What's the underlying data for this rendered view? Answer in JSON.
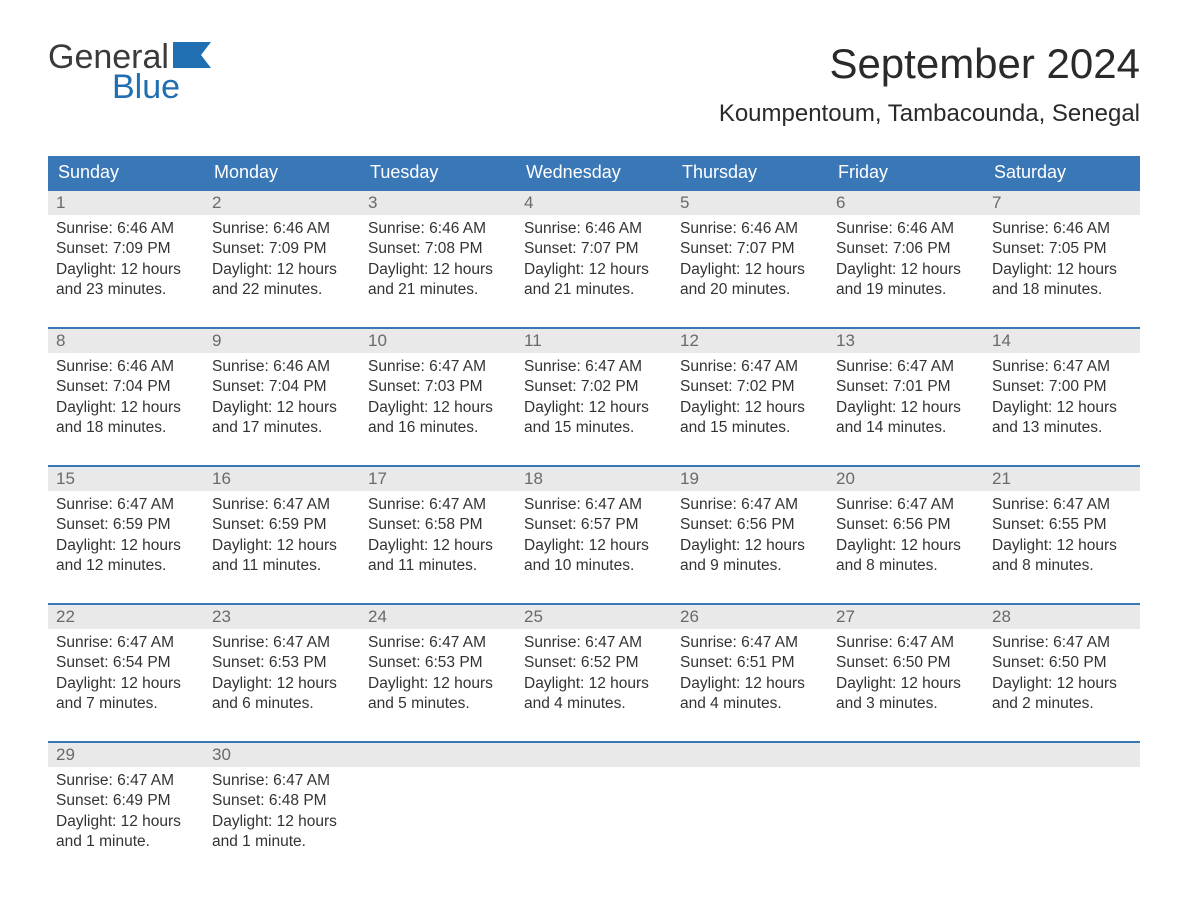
{
  "logo": {
    "word1": "General",
    "word2": "Blue"
  },
  "title": "September 2024",
  "location": "Koumpentoum, Tambacounda, Senegal",
  "colors": {
    "header_bg": "#3a77b7",
    "header_text": "#ffffff",
    "row_border": "#3a77b7",
    "daynum_bg": "#e9e9e9",
    "daynum_text": "#6a6a6a",
    "body_text": "#333333",
    "logo_gray": "#3a3a3a",
    "logo_blue": "#1f6fb2",
    "page_bg": "#ffffff"
  },
  "dow": [
    "Sunday",
    "Monday",
    "Tuesday",
    "Wednesday",
    "Thursday",
    "Friday",
    "Saturday"
  ],
  "weeks": [
    [
      {
        "n": "1",
        "sr": "Sunrise: 6:46 AM",
        "ss": "Sunset: 7:09 PM",
        "d1": "Daylight: 12 hours",
        "d2": "and 23 minutes."
      },
      {
        "n": "2",
        "sr": "Sunrise: 6:46 AM",
        "ss": "Sunset: 7:09 PM",
        "d1": "Daylight: 12 hours",
        "d2": "and 22 minutes."
      },
      {
        "n": "3",
        "sr": "Sunrise: 6:46 AM",
        "ss": "Sunset: 7:08 PM",
        "d1": "Daylight: 12 hours",
        "d2": "and 21 minutes."
      },
      {
        "n": "4",
        "sr": "Sunrise: 6:46 AM",
        "ss": "Sunset: 7:07 PM",
        "d1": "Daylight: 12 hours",
        "d2": "and 21 minutes."
      },
      {
        "n": "5",
        "sr": "Sunrise: 6:46 AM",
        "ss": "Sunset: 7:07 PM",
        "d1": "Daylight: 12 hours",
        "d2": "and 20 minutes."
      },
      {
        "n": "6",
        "sr": "Sunrise: 6:46 AM",
        "ss": "Sunset: 7:06 PM",
        "d1": "Daylight: 12 hours",
        "d2": "and 19 minutes."
      },
      {
        "n": "7",
        "sr": "Sunrise: 6:46 AM",
        "ss": "Sunset: 7:05 PM",
        "d1": "Daylight: 12 hours",
        "d2": "and 18 minutes."
      }
    ],
    [
      {
        "n": "8",
        "sr": "Sunrise: 6:46 AM",
        "ss": "Sunset: 7:04 PM",
        "d1": "Daylight: 12 hours",
        "d2": "and 18 minutes."
      },
      {
        "n": "9",
        "sr": "Sunrise: 6:46 AM",
        "ss": "Sunset: 7:04 PM",
        "d1": "Daylight: 12 hours",
        "d2": "and 17 minutes."
      },
      {
        "n": "10",
        "sr": "Sunrise: 6:47 AM",
        "ss": "Sunset: 7:03 PM",
        "d1": "Daylight: 12 hours",
        "d2": "and 16 minutes."
      },
      {
        "n": "11",
        "sr": "Sunrise: 6:47 AM",
        "ss": "Sunset: 7:02 PM",
        "d1": "Daylight: 12 hours",
        "d2": "and 15 minutes."
      },
      {
        "n": "12",
        "sr": "Sunrise: 6:47 AM",
        "ss": "Sunset: 7:02 PM",
        "d1": "Daylight: 12 hours",
        "d2": "and 15 minutes."
      },
      {
        "n": "13",
        "sr": "Sunrise: 6:47 AM",
        "ss": "Sunset: 7:01 PM",
        "d1": "Daylight: 12 hours",
        "d2": "and 14 minutes."
      },
      {
        "n": "14",
        "sr": "Sunrise: 6:47 AM",
        "ss": "Sunset: 7:00 PM",
        "d1": "Daylight: 12 hours",
        "d2": "and 13 minutes."
      }
    ],
    [
      {
        "n": "15",
        "sr": "Sunrise: 6:47 AM",
        "ss": "Sunset: 6:59 PM",
        "d1": "Daylight: 12 hours",
        "d2": "and 12 minutes."
      },
      {
        "n": "16",
        "sr": "Sunrise: 6:47 AM",
        "ss": "Sunset: 6:59 PM",
        "d1": "Daylight: 12 hours",
        "d2": "and 11 minutes."
      },
      {
        "n": "17",
        "sr": "Sunrise: 6:47 AM",
        "ss": "Sunset: 6:58 PM",
        "d1": "Daylight: 12 hours",
        "d2": "and 11 minutes."
      },
      {
        "n": "18",
        "sr": "Sunrise: 6:47 AM",
        "ss": "Sunset: 6:57 PM",
        "d1": "Daylight: 12 hours",
        "d2": "and 10 minutes."
      },
      {
        "n": "19",
        "sr": "Sunrise: 6:47 AM",
        "ss": "Sunset: 6:56 PM",
        "d1": "Daylight: 12 hours",
        "d2": "and 9 minutes."
      },
      {
        "n": "20",
        "sr": "Sunrise: 6:47 AM",
        "ss": "Sunset: 6:56 PM",
        "d1": "Daylight: 12 hours",
        "d2": "and 8 minutes."
      },
      {
        "n": "21",
        "sr": "Sunrise: 6:47 AM",
        "ss": "Sunset: 6:55 PM",
        "d1": "Daylight: 12 hours",
        "d2": "and 8 minutes."
      }
    ],
    [
      {
        "n": "22",
        "sr": "Sunrise: 6:47 AM",
        "ss": "Sunset: 6:54 PM",
        "d1": "Daylight: 12 hours",
        "d2": "and 7 minutes."
      },
      {
        "n": "23",
        "sr": "Sunrise: 6:47 AM",
        "ss": "Sunset: 6:53 PM",
        "d1": "Daylight: 12 hours",
        "d2": "and 6 minutes."
      },
      {
        "n": "24",
        "sr": "Sunrise: 6:47 AM",
        "ss": "Sunset: 6:53 PM",
        "d1": "Daylight: 12 hours",
        "d2": "and 5 minutes."
      },
      {
        "n": "25",
        "sr": "Sunrise: 6:47 AM",
        "ss": "Sunset: 6:52 PM",
        "d1": "Daylight: 12 hours",
        "d2": "and 4 minutes."
      },
      {
        "n": "26",
        "sr": "Sunrise: 6:47 AM",
        "ss": "Sunset: 6:51 PM",
        "d1": "Daylight: 12 hours",
        "d2": "and 4 minutes."
      },
      {
        "n": "27",
        "sr": "Sunrise: 6:47 AM",
        "ss": "Sunset: 6:50 PM",
        "d1": "Daylight: 12 hours",
        "d2": "and 3 minutes."
      },
      {
        "n": "28",
        "sr": "Sunrise: 6:47 AM",
        "ss": "Sunset: 6:50 PM",
        "d1": "Daylight: 12 hours",
        "d2": "and 2 minutes."
      }
    ],
    [
      {
        "n": "29",
        "sr": "Sunrise: 6:47 AM",
        "ss": "Sunset: 6:49 PM",
        "d1": "Daylight: 12 hours",
        "d2": "and 1 minute."
      },
      {
        "n": "30",
        "sr": "Sunrise: 6:47 AM",
        "ss": "Sunset: 6:48 PM",
        "d1": "Daylight: 12 hours",
        "d2": "and 1 minute."
      },
      {
        "n": "",
        "sr": "",
        "ss": "",
        "d1": "",
        "d2": ""
      },
      {
        "n": "",
        "sr": "",
        "ss": "",
        "d1": "",
        "d2": ""
      },
      {
        "n": "",
        "sr": "",
        "ss": "",
        "d1": "",
        "d2": ""
      },
      {
        "n": "",
        "sr": "",
        "ss": "",
        "d1": "",
        "d2": ""
      },
      {
        "n": "",
        "sr": "",
        "ss": "",
        "d1": "",
        "d2": ""
      }
    ]
  ]
}
